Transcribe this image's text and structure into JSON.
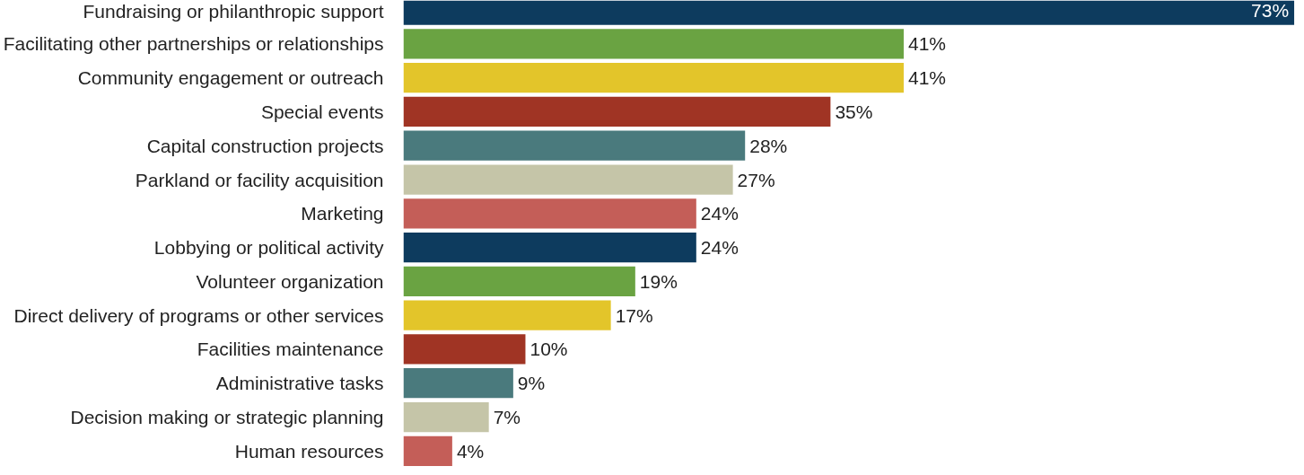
{
  "chart_data": {
    "type": "bar",
    "orientation": "horizontal",
    "tick_labels": "y",
    "grid": false,
    "categories": [
      "Fundraising or philanthropic support",
      "Facilitating other partnerships or relationships",
      "Community engagement or outreach",
      "Special events",
      "Capital construction projects",
      "Parkland or facility acquisition",
      "Marketing",
      "Lobbying or political activity",
      "Volunteer organization",
      "Direct delivery of programs or other services",
      "Facilities maintenance",
      "Administrative tasks",
      "Decision making or strategic planning",
      "Human resources"
    ],
    "values": [
      73,
      41,
      41,
      35,
      28,
      27,
      24,
      24,
      19,
      17,
      10,
      9,
      7,
      4
    ],
    "value_labels": [
      "73%",
      "41%",
      "41%",
      "35%",
      "28%",
      "27%",
      "24%",
      "24%",
      "19%",
      "17%",
      "10%",
      "9%",
      "7%",
      "4%"
    ],
    "colors": [
      "#0d3b5e",
      "#6aa342",
      "#e3c52a",
      "#a03424",
      "#4a7a7d",
      "#c5c5a8",
      "#c45e58",
      "#0d3b5e",
      "#6aa342",
      "#e3c52a",
      "#a03424",
      "#4a7a7d",
      "#c5c5a8",
      "#c45e58"
    ]
  }
}
